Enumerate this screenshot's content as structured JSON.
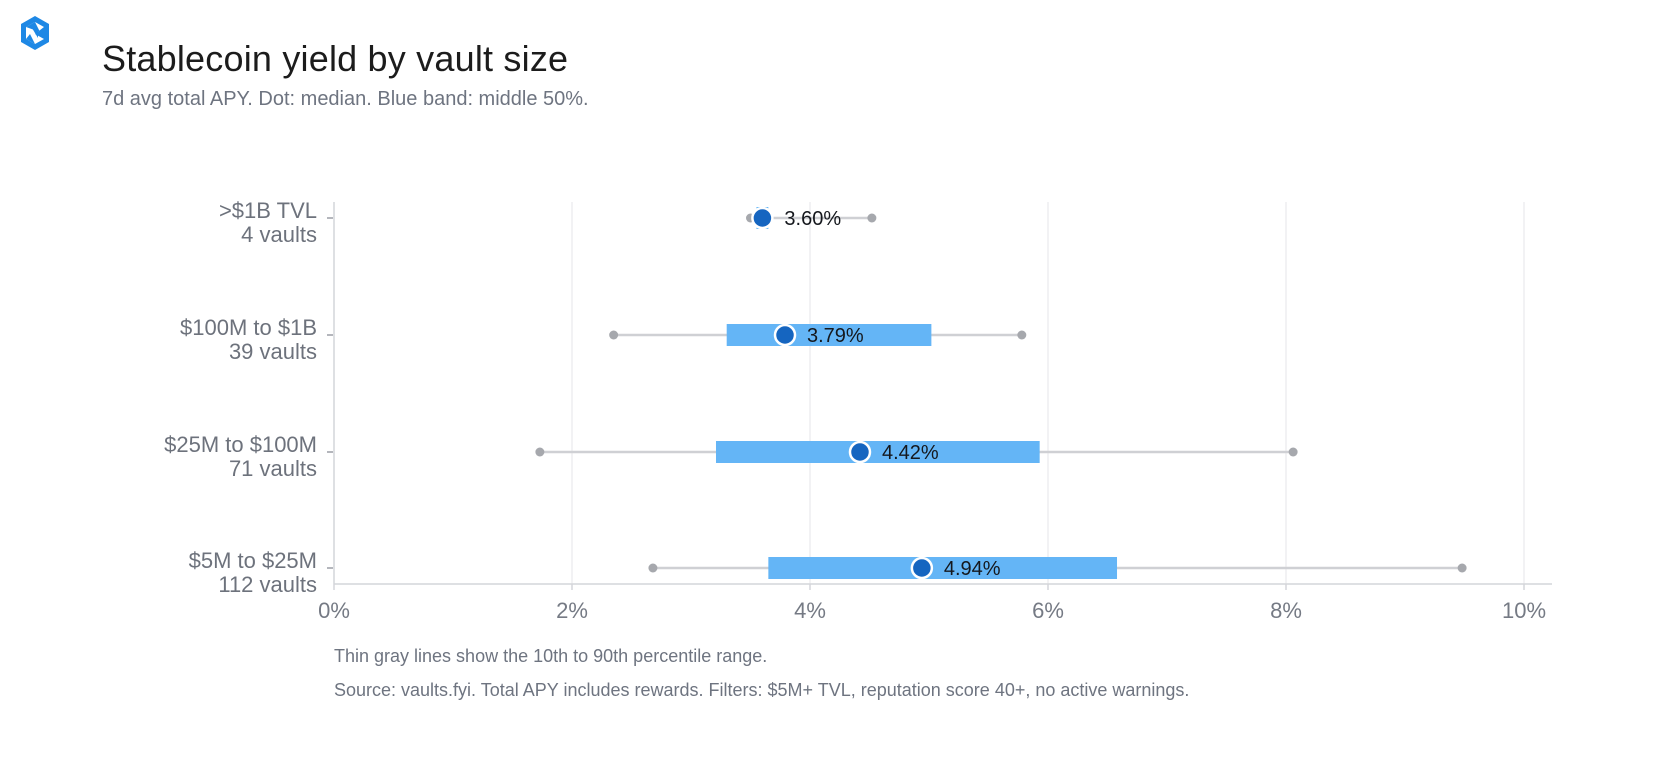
{
  "header": {
    "title": "Stablecoin yield by vault size",
    "subtitle": "7d avg total APY. Dot: median. Blue band: middle 50%.",
    "logo_icon": "aperture-logo-icon"
  },
  "footer": {
    "note": "Thin gray lines show the 10th to 90th percentile range.",
    "source": "Source: vaults.fyi. Total APY includes rewards. Filters: $5M+ TVL, reputation score 40+, no active warnings."
  },
  "colors": {
    "band": "#64b5f6",
    "median_dot": "#1565c0",
    "whisker": "#cfd0d4",
    "whisker_end": "#a6a8ad",
    "grid": "#e6e6e9",
    "axis": "#d4d6da",
    "logo": "#1e88e5"
  },
  "chart_data": {
    "type": "range",
    "title": "Stablecoin yield by vault size",
    "subtitle": "7d avg total APY. Dot: median. Blue band: middle 50%.",
    "x_unit": "%",
    "xlim": [
      0,
      10
    ],
    "x_ticks": [
      0,
      2,
      4,
      6,
      8,
      10
    ],
    "x_tick_labels": [
      "0%",
      "2%",
      "4%",
      "6%",
      "8%",
      "10%"
    ],
    "grid": "vertical",
    "categories": [
      {
        "label": ">$1B TVL",
        "count": "4 vaults",
        "p10": 3.5,
        "p25": 3.55,
        "median": 3.6,
        "p75": 3.65,
        "p90": 4.52,
        "median_label": "3.60%"
      },
      {
        "label": "$100M to $1B",
        "count": "39 vaults",
        "p10": 2.35,
        "p25": 3.3,
        "median": 3.79,
        "p75": 5.02,
        "p90": 5.78,
        "median_label": "3.79%"
      },
      {
        "label": "$25M to $100M",
        "count": "71 vaults",
        "p10": 1.73,
        "p25": 3.21,
        "median": 4.42,
        "p75": 5.93,
        "p90": 8.06,
        "median_label": "4.42%"
      },
      {
        "label": "$5M to $25M",
        "count": "112 vaults",
        "p10": 2.68,
        "p25": 3.65,
        "median": 4.94,
        "p75": 6.58,
        "p90": 9.48,
        "median_label": "4.94%"
      }
    ]
  }
}
